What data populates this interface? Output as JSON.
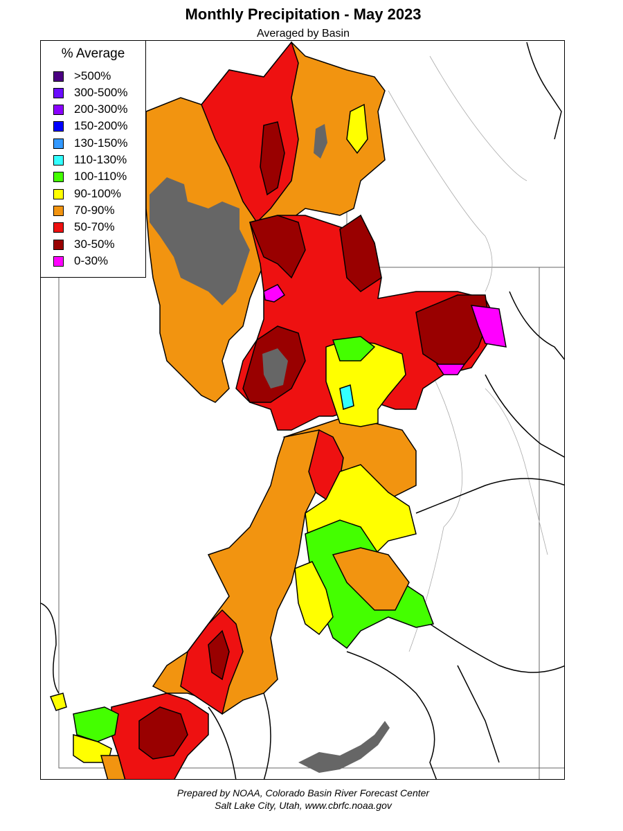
{
  "title": "Monthly Precipitation - May 2023",
  "subtitle": "Averaged by Basin",
  "legend": {
    "title": "% Average",
    "items": [
      {
        "label": ">500%",
        "color": "#4b0082"
      },
      {
        "label": "300-500%",
        "color": "#6a0dff"
      },
      {
        "label": "200-300%",
        "color": "#8a00ff"
      },
      {
        "label": "150-200%",
        "color": "#0000ff"
      },
      {
        "label": "130-150%",
        "color": "#3399ff"
      },
      {
        "label": "110-130%",
        "color": "#33ffff"
      },
      {
        "label": "100-110%",
        "color": "#44ff00"
      },
      {
        "label": "90-100%",
        "color": "#ffff00"
      },
      {
        "label": "70-90%",
        "color": "#f29410"
      },
      {
        "label": "50-70%",
        "color": "#ee1111"
      },
      {
        "label": "30-50%",
        "color": "#990000"
      },
      {
        "label": "0-30%",
        "color": "#ff00ff"
      }
    ]
  },
  "lake_color": "#666666",
  "footer": {
    "line1": "Prepared by NOAA, Colorado Basin River Forecast Center",
    "line2": "Salt Lake City, Utah, www.cbrfc.noaa.gov"
  }
}
